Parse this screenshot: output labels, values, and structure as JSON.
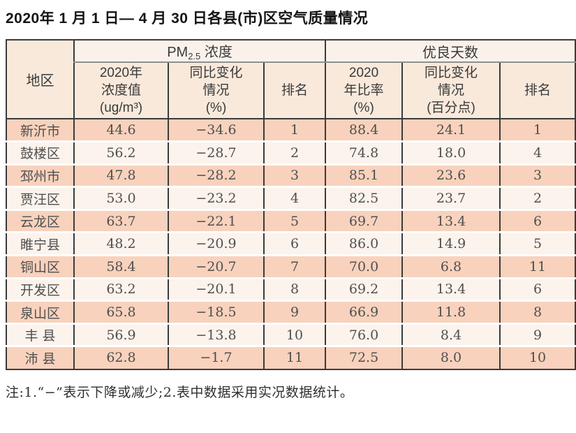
{
  "title": "2020年 1 月 1 日— 4 月 30 日各县(市)区空气质量情况",
  "note": "注:1.“−”表示下降或减少;2.表中数据采用实况数据统计。",
  "colors": {
    "row_odd": "#f8d2bd",
    "row_even": "#fcf3ec",
    "header_top": "#faf2ea",
    "header_sub": "#f8e9db",
    "border": "#3b3b3b"
  },
  "table": {
    "region_header": "地区",
    "pm_group_header": {
      "base": "PM",
      "sub": "2.5",
      "rest": " 浓度"
    },
    "good_group_header": "优良天数",
    "sub_headers": {
      "pm_value": "2020年\n浓度值\n(ug/m³)",
      "pm_change": "同比变化\n情况\n(%)",
      "pm_rank": "排名",
      "good_rate": "2020\n年比率\n(%)",
      "good_change": "同比变化\n情况\n(百分点)",
      "good_rank": "排名"
    },
    "rows": [
      {
        "region": "新沂市",
        "pm_value": "44.6",
        "pm_change": "−34.6",
        "pm_rank": "1",
        "good_rate": "88.4",
        "good_change": "24.1",
        "good_rank": "1"
      },
      {
        "region": "鼓楼区",
        "pm_value": "56.2",
        "pm_change": "−28.7",
        "pm_rank": "2",
        "good_rate": "74.8",
        "good_change": "18.0",
        "good_rank": "4"
      },
      {
        "region": "邳州市",
        "pm_value": "47.8",
        "pm_change": "−28.2",
        "pm_rank": "3",
        "good_rate": "85.1",
        "good_change": "23.6",
        "good_rank": "3"
      },
      {
        "region": "贾汪区",
        "pm_value": "53.0",
        "pm_change": "−23.2",
        "pm_rank": "4",
        "good_rate": "82.5",
        "good_change": "23.7",
        "good_rank": "2"
      },
      {
        "region": "云龙区",
        "pm_value": "63.7",
        "pm_change": "−22.1",
        "pm_rank": "5",
        "good_rate": "69.7",
        "good_change": "13.4",
        "good_rank": "6"
      },
      {
        "region": "睢宁县",
        "pm_value": "48.2",
        "pm_change": "−20.9",
        "pm_rank": "6",
        "good_rate": "86.0",
        "good_change": "14.9",
        "good_rank": "5"
      },
      {
        "region": "铜山区",
        "pm_value": "58.4",
        "pm_change": "−20.7",
        "pm_rank": "7",
        "good_rate": "70.0",
        "good_change": "6.8",
        "good_rank": "11"
      },
      {
        "region": "开发区",
        "pm_value": "63.2",
        "pm_change": "−20.1",
        "pm_rank": "8",
        "good_rate": "69.2",
        "good_change": "13.4",
        "good_rank": "6"
      },
      {
        "region": "泉山区",
        "pm_value": "65.8",
        "pm_change": "−18.5",
        "pm_rank": "9",
        "good_rate": "66.9",
        "good_change": "11.8",
        "good_rank": "8"
      },
      {
        "region": "丰 县",
        "pm_value": "56.9",
        "pm_change": "−13.8",
        "pm_rank": "10",
        "good_rate": "76.0",
        "good_change": "8.4",
        "good_rank": "9"
      },
      {
        "region": "沛 县",
        "pm_value": "62.8",
        "pm_change": "−1.7",
        "pm_rank": "11",
        "good_rate": "72.5",
        "good_change": "8.0",
        "good_rank": "10"
      }
    ]
  }
}
